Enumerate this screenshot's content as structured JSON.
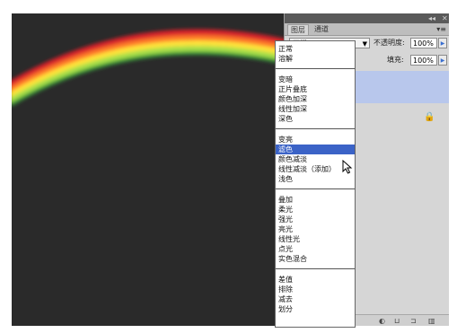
{
  "panel": {
    "tabs": [
      {
        "label": "图层"
      },
      {
        "label": "通道"
      }
    ],
    "blend_mode": "正常",
    "opacity_label": "不透明度:",
    "opacity_value": "100%",
    "fill_label": "填充:",
    "fill_value": "100%"
  },
  "dropdown": {
    "groups": [
      [
        "正常",
        "溶解"
      ],
      [
        "变暗",
        "正片叠底",
        "颜色加深",
        "线性加深",
        "深色"
      ],
      [
        "变亮",
        "滤色",
        "颜色减淡",
        "线性减淡（添加）",
        "浅色"
      ],
      [
        "叠加",
        "柔光",
        "强光",
        "亮光",
        "线性光",
        "点光",
        "实色混合"
      ],
      [
        "差值",
        "排除",
        "减去",
        "划分"
      ]
    ],
    "selected": "滤色"
  },
  "icons": {
    "lock": "lock-icon",
    "cursor": "cursor-arrow-icon"
  },
  "colors": {
    "canvas_bg": "#2a2a2a",
    "selection": "#3b63c7",
    "layer_highlight": "#b8c7ec"
  }
}
